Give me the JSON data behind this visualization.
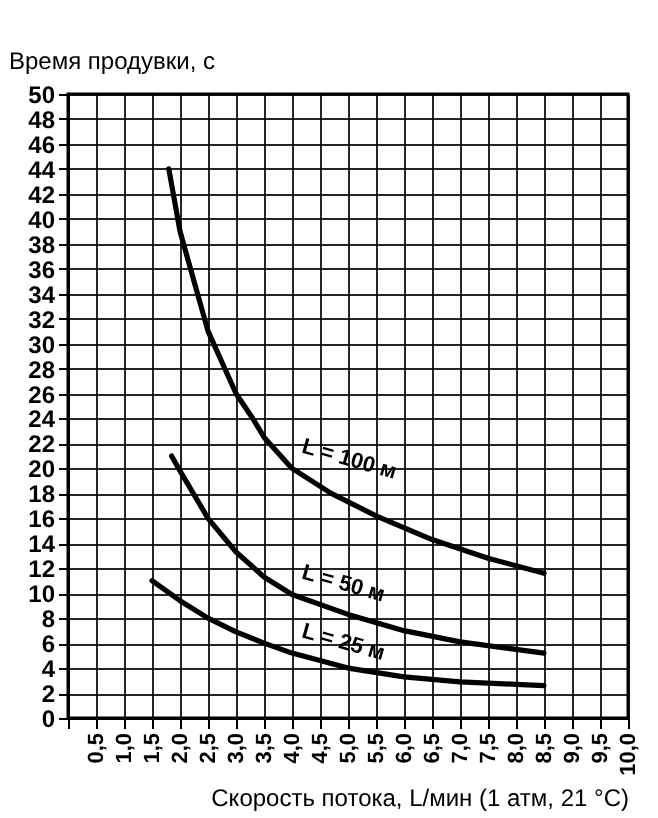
{
  "chart_data": {
    "type": "line",
    "xlabel": "Скорость потока, L/мин (1 атм, 21 °C)",
    "ylabel": "Время продувки, с",
    "xlim": [
      0,
      10
    ],
    "ylim": [
      0,
      50
    ],
    "xticks": [
      {
        "value": 0,
        "label": null
      },
      {
        "value": 0.5,
        "label": "0,5"
      },
      {
        "value": 1,
        "label": "1,0"
      },
      {
        "value": 1.5,
        "label": "1,5"
      },
      {
        "value": 2,
        "label": "2,0"
      },
      {
        "value": 2.5,
        "label": "2,5"
      },
      {
        "value": 3,
        "label": "3,0"
      },
      {
        "value": 3.5,
        "label": "3,5"
      },
      {
        "value": 4,
        "label": "4,0"
      },
      {
        "value": 4.5,
        "label": "4,5"
      },
      {
        "value": 5,
        "label": "5,0"
      },
      {
        "value": 5.5,
        "label": "5,5"
      },
      {
        "value": 6,
        "label": "6,0"
      },
      {
        "value": 6.5,
        "label": "6,5"
      },
      {
        "value": 7,
        "label": "7,0"
      },
      {
        "value": 7.5,
        "label": "7,5"
      },
      {
        "value": 8,
        "label": "8,0"
      },
      {
        "value": 8.5,
        "label": "8,5"
      },
      {
        "value": 9,
        "label": "9,0"
      },
      {
        "value": 9.5,
        "label": "9,5"
      },
      {
        "value": 10,
        "label": "10,0"
      }
    ],
    "yticks": [
      0,
      2,
      4,
      6,
      8,
      10,
      12,
      14,
      16,
      18,
      20,
      22,
      24,
      26,
      28,
      30,
      32,
      34,
      36,
      38,
      40,
      42,
      44,
      46,
      48,
      50
    ],
    "grid": true,
    "line_style": "solid",
    "marker": "none",
    "series": [
      {
        "color": "#000000",
        "x": [
          1.8,
          2.0,
          2.5,
          3.0,
          3.3,
          3.5,
          4.0,
          4.7,
          5.5,
          6.5,
          7.5,
          8.5
        ],
        "values": [
          44,
          39,
          31,
          26,
          24,
          22.5,
          20,
          18,
          16.2,
          14.3,
          12.8,
          11.6
        ]
      },
      {
        "color": "#000000",
        "x": [
          1.85,
          2.0,
          2.5,
          3.0,
          3.5,
          4.0,
          5.0,
          6.0,
          7.0,
          8.0,
          8.5
        ],
        "values": [
          21,
          19.8,
          16,
          13.3,
          11.3,
          9.9,
          8.3,
          7.0,
          6.1,
          5.5,
          5.2
        ]
      },
      {
        "color": "#000000",
        "x": [
          1.5,
          2.0,
          2.5,
          3.0,
          3.5,
          4.0,
          5.0,
          6.0,
          7.0,
          8.0,
          8.5
        ],
        "values": [
          11,
          9.4,
          8,
          6.9,
          6.0,
          5.2,
          4.0,
          3.3,
          2.9,
          2.7,
          2.6
        ]
      }
    ],
    "annotations": [
      "L = 100 м",
      "L = 50 м",
      "L = 25 м"
    ]
  }
}
